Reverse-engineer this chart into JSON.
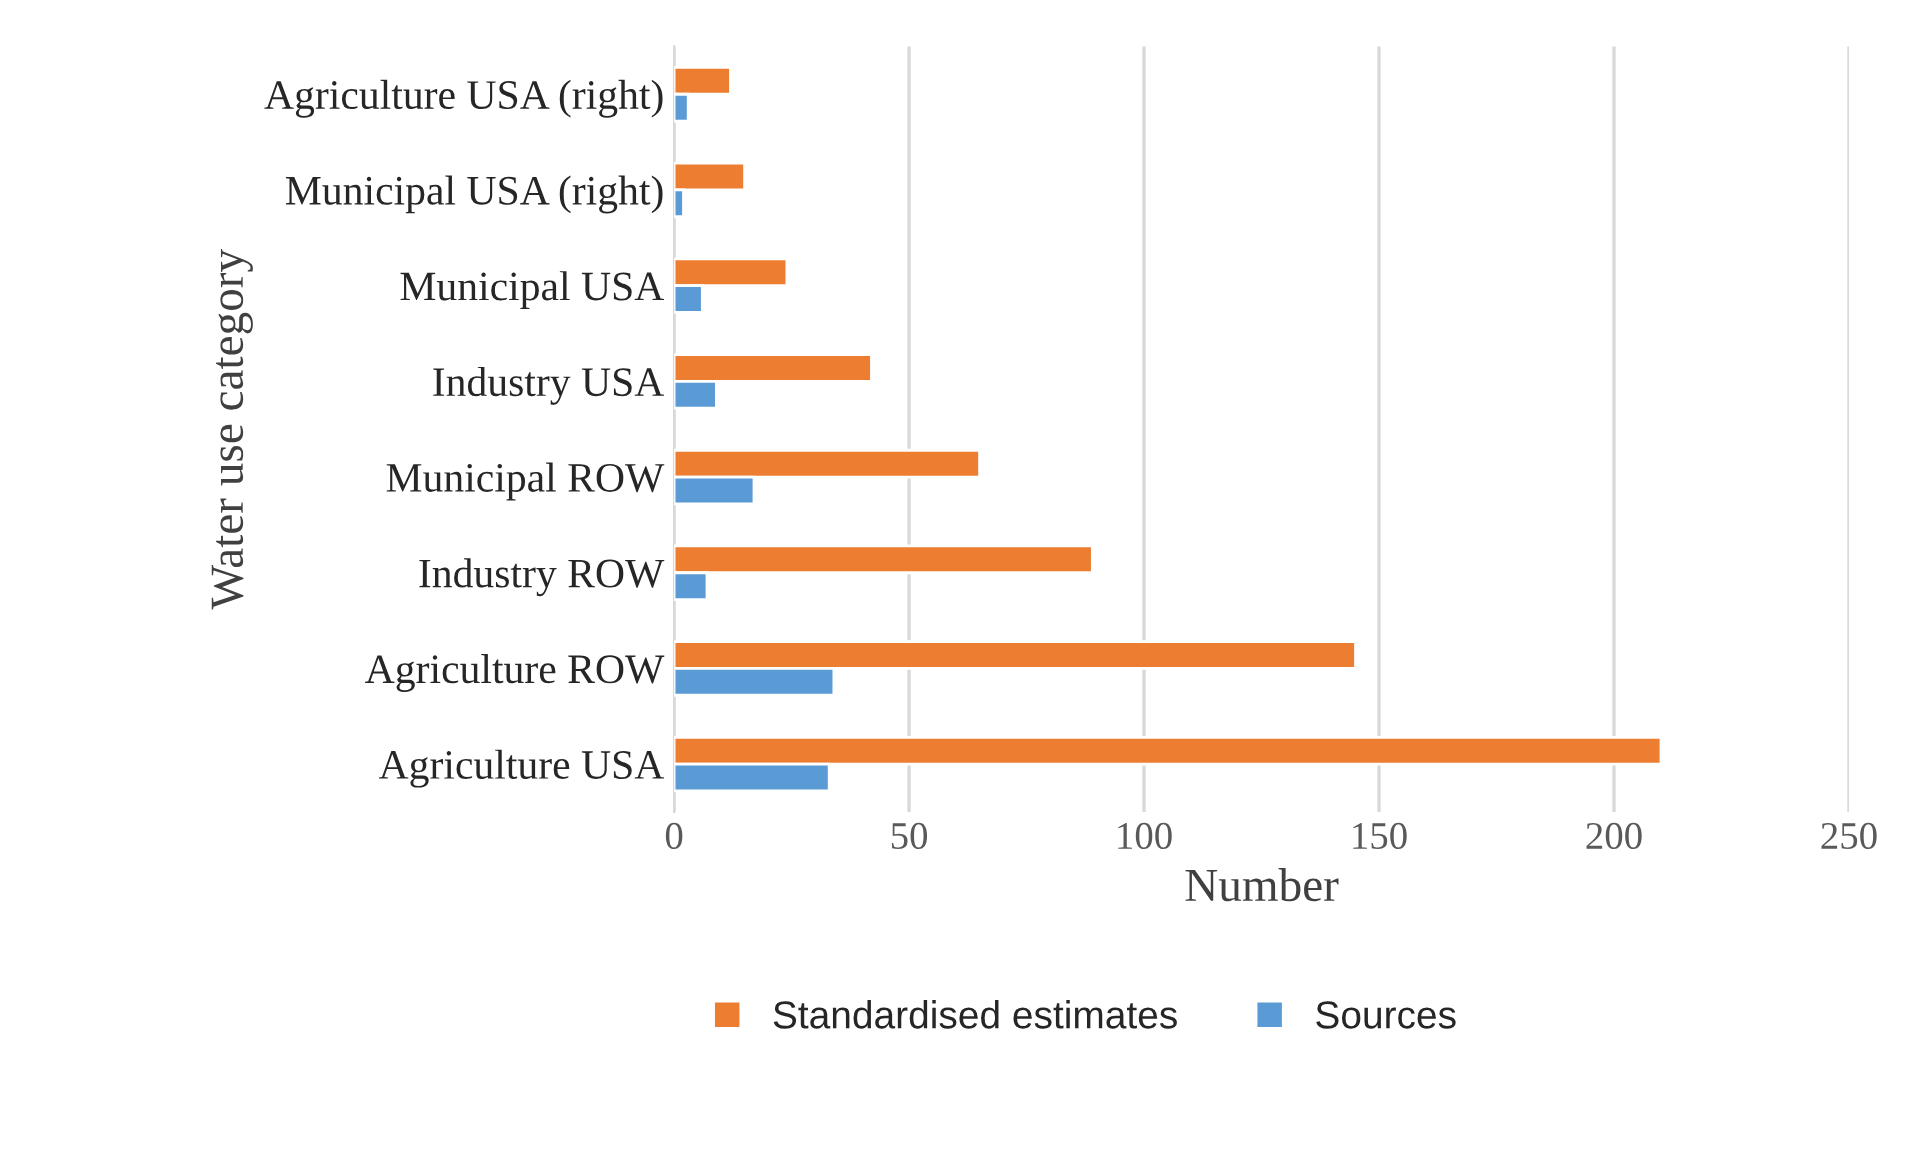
{
  "chart_data": {
    "type": "bar",
    "orientation": "horizontal",
    "xlabel": "Number",
    "ylabel": "Water use category",
    "categories": [
      "Agriculture USA (right)",
      "Municipal USA (right)",
      "Municipal USA",
      "Industry USA",
      "Municipal ROW",
      "Industry ROW",
      "Agriculture ROW",
      "Agriculture USA"
    ],
    "series": [
      {
        "name": "Standardised estimates",
        "color": "#ed7d31",
        "values": [
          12,
          15,
          24,
          42,
          65,
          89,
          145,
          210
        ]
      },
      {
        "name": "Sources",
        "color": "#5b9bd5",
        "values": [
          3,
          2,
          6,
          9,
          17,
          7,
          34,
          33
        ]
      }
    ],
    "xlim": [
      0,
      250
    ],
    "xticks": [
      0,
      50,
      100,
      150,
      200,
      250
    ],
    "grid": "x",
    "legend": "bottom"
  }
}
